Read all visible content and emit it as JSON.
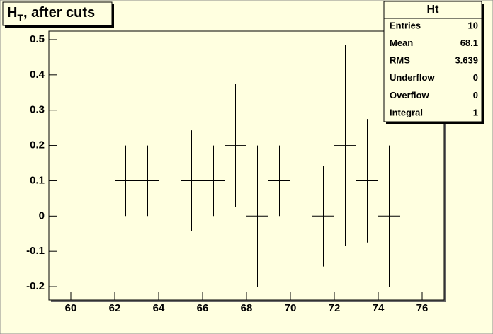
{
  "chart_data": {
    "type": "errorbar",
    "title_parts": [
      "H",
      "T",
      ", after cuts"
    ],
    "x": [
      62.5,
      63.5,
      65.5,
      66.5,
      67.5,
      68.5,
      69.5,
      71.5,
      72.5,
      73.5,
      74.5
    ],
    "values": [
      0.1,
      0.1,
      0.1,
      0.1,
      0.2,
      0,
      0.1,
      0,
      0.2,
      0.1,
      0
    ],
    "errors": [
      0.1,
      0.1,
      0.143,
      0.1,
      0.175,
      0.2,
      0.1,
      0.143,
      0.285,
      0.175,
      0.2
    ],
    "bin_width": 1,
    "color": "#000000",
    "xlim": [
      59,
      77
    ],
    "xticks": [
      60,
      62,
      64,
      66,
      68,
      70,
      72,
      74,
      76
    ],
    "ylim": [
      -0.238,
      0.524
    ],
    "yticks": [
      -0.2,
      -0.1,
      0,
      0.1,
      0.2,
      0.3,
      0.4,
      0.5
    ],
    "stats": {
      "title": "Ht",
      "rows": [
        [
          "Entries",
          10
        ],
        [
          "Mean",
          68.1
        ],
        [
          "RMS",
          3.639
        ],
        [
          "Underflow",
          0
        ],
        [
          "Overflow",
          0
        ],
        [
          "Integral",
          1
        ]
      ]
    }
  }
}
